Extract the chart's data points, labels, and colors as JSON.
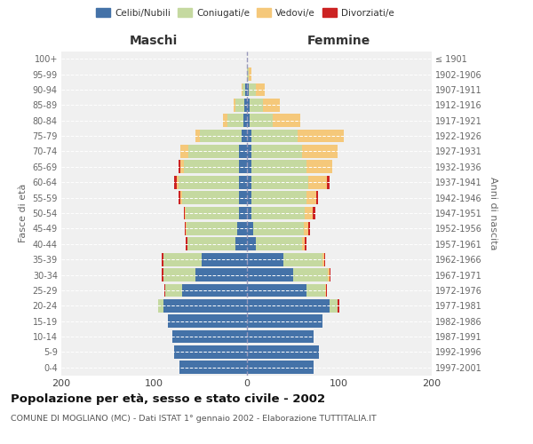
{
  "age_groups": [
    "0-4",
    "5-9",
    "10-14",
    "15-19",
    "20-24",
    "25-29",
    "30-34",
    "35-39",
    "40-44",
    "45-49",
    "50-54",
    "55-59",
    "60-64",
    "65-69",
    "70-74",
    "75-79",
    "80-84",
    "85-89",
    "90-94",
    "95-99",
    "100+"
  ],
  "birth_years": [
    "1997-2001",
    "1992-1996",
    "1987-1991",
    "1982-1986",
    "1977-1981",
    "1972-1976",
    "1967-1971",
    "1962-1966",
    "1957-1961",
    "1952-1956",
    "1947-1951",
    "1942-1946",
    "1937-1941",
    "1932-1936",
    "1927-1931",
    "1922-1926",
    "1917-1921",
    "1912-1916",
    "1907-1911",
    "1902-1906",
    "≤ 1901"
  ],
  "colors": {
    "celibi": "#4472a8",
    "coniugati": "#c5d9a0",
    "vedovi": "#f5c87a",
    "divorziati": "#cc2222"
  },
  "maschi": {
    "celibi": [
      72,
      78,
      80,
      85,
      90,
      70,
      55,
      48,
      12,
      10,
      8,
      8,
      8,
      8,
      8,
      5,
      3,
      2,
      1,
      0,
      0
    ],
    "coniugati": [
      0,
      0,
      0,
      0,
      5,
      18,
      35,
      42,
      52,
      55,
      58,
      62,
      65,
      60,
      55,
      45,
      18,
      10,
      3,
      0,
      0
    ],
    "vedovi": [
      0,
      0,
      0,
      0,
      0,
      0,
      0,
      0,
      0,
      1,
      1,
      1,
      2,
      3,
      8,
      5,
      4,
      2,
      1,
      0,
      0
    ],
    "divorziati": [
      0,
      0,
      0,
      0,
      0,
      1,
      2,
      2,
      2,
      1,
      1,
      2,
      3,
      2,
      0,
      0,
      0,
      0,
      0,
      0,
      0
    ]
  },
  "femmine": {
    "celibi": [
      72,
      78,
      72,
      82,
      90,
      65,
      50,
      40,
      10,
      7,
      5,
      5,
      5,
      5,
      5,
      5,
      3,
      3,
      2,
      0,
      0
    ],
    "coniugati": [
      0,
      0,
      0,
      0,
      8,
      20,
      38,
      42,
      50,
      55,
      58,
      60,
      62,
      60,
      55,
      50,
      25,
      15,
      8,
      2,
      0
    ],
    "vedovi": [
      0,
      0,
      0,
      0,
      0,
      1,
      2,
      2,
      3,
      5,
      8,
      10,
      20,
      28,
      38,
      50,
      30,
      18,
      10,
      3,
      0
    ],
    "divorziati": [
      0,
      0,
      0,
      0,
      2,
      1,
      1,
      1,
      2,
      2,
      3,
      2,
      3,
      0,
      0,
      0,
      0,
      0,
      0,
      0,
      0
    ]
  },
  "xlim": 200,
  "title": "Popolazione per età, sesso e stato civile - 2002",
  "subtitle": "COMUNE DI MOGLIANO (MC) - Dati ISTAT 1° gennaio 2002 - Elaborazione TUTTITALIA.IT",
  "ylabel_left": "Fasce di età",
  "ylabel_right": "Anni di nascita",
  "xlabel_left": "Maschi",
  "xlabel_right": "Femmine",
  "bg_color": "#f0f0f0",
  "bar_height": 0.85
}
